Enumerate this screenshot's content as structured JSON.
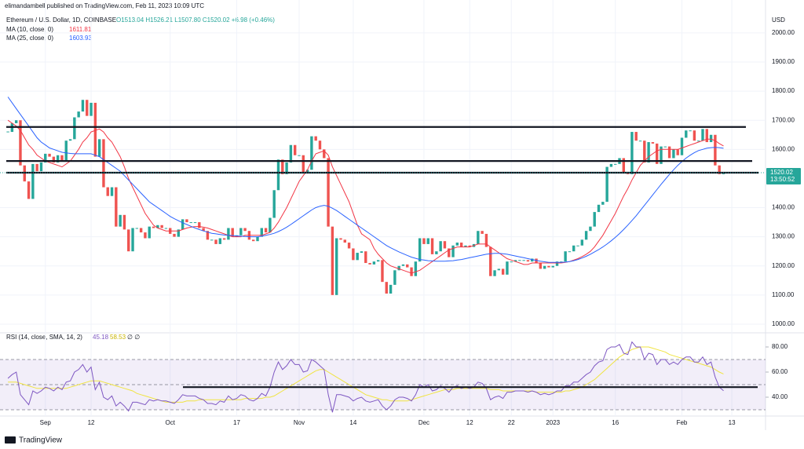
{
  "header": "elimandambell published on TradingView.com, Feb 11, 2023 10:09 UTC",
  "footer": "TradingView",
  "chart_data": {
    "type": "candlestick",
    "symbol": "Ethereum / U.S. Dollar, 1D, COINBASE",
    "ohlc_text": "O1513.04 H1526.21 L1507.80 C1520.02 +6.98 (+0.46%)",
    "currency": "USD",
    "countdown": "13:50:52",
    "up_color": "#26a69a",
    "down_color": "#ef5350",
    "close": [
      1660,
      1690,
      1700,
      1545,
      1490,
      1430,
      1550,
      1525,
      1555,
      1585,
      1575,
      1555,
      1580,
      1560,
      1630,
      1635,
      1710,
      1730,
      1770,
      1715,
      1760,
      1575,
      1635,
      1470,
      1440,
      1470,
      1335,
      1375,
      1325,
      1250,
      1330,
      1330,
      1315,
      1295,
      1335,
      1330,
      1340,
      1330,
      1330,
      1310,
      1300,
      1325,
      1360,
      1350,
      1350,
      1350,
      1330,
      1320,
      1290,
      1290,
      1275,
      1295,
      1290,
      1330,
      1300,
      1305,
      1330,
      1320,
      1290,
      1285,
      1300,
      1330,
      1315,
      1365,
      1460,
      1565,
      1515,
      1555,
      1615,
      1580,
      1580,
      1520,
      1530,
      1645,
      1630,
      1600,
      1570,
      1335,
      1100,
      1295,
      1290,
      1280,
      1260,
      1220,
      1245,
      1250,
      1210,
      1205,
      1215,
      1220,
      1145,
      1105,
      1135,
      1185,
      1200,
      1205,
      1195,
      1165,
      1215,
      1295,
      1275,
      1295,
      1240,
      1250,
      1285,
      1260,
      1230,
      1270,
      1280,
      1265,
      1270,
      1265,
      1275,
      1320,
      1310,
      1265,
      1165,
      1185,
      1190,
      1170,
      1215,
      1215,
      1220,
      1220,
      1220,
      1215,
      1225,
      1210,
      1190,
      1200,
      1195,
      1200,
      1215,
      1215,
      1250,
      1250,
      1270,
      1270,
      1290,
      1320,
      1335,
      1385,
      1410,
      1420,
      1540,
      1550,
      1550,
      1570,
      1520,
      1515,
      1660,
      1630,
      1630,
      1555,
      1625,
      1620,
      1550,
      1610,
      1610,
      1570,
      1600,
      1580,
      1640,
      1665,
      1665,
      1630,
      1630,
      1670,
      1625,
      1650,
      1545,
      1515,
      1520.02
    ],
    "series": [
      {
        "name": "MA (10, close, 0)",
        "color": "#f23645",
        "values": [
          1700,
          1690,
          1680,
          1665,
          1640,
          1615,
          1600,
          1580,
          1570,
          1560,
          1555,
          1550,
          1545,
          1540,
          1550,
          1560,
          1580,
          1600,
          1625,
          1640,
          1660,
          1665,
          1670,
          1660,
          1640,
          1625,
          1600,
          1575,
          1540,
          1500,
          1470,
          1440,
          1410,
          1380,
          1360,
          1340,
          1330,
          1325,
          1320,
          1320,
          1320,
          1320,
          1325,
          1330,
          1333,
          1335,
          1335,
          1333,
          1330,
          1325,
          1320,
          1315,
          1310,
          1305,
          1300,
          1300,
          1300,
          1305,
          1305,
          1305,
          1305,
          1305,
          1310,
          1315,
          1330,
          1350,
          1375,
          1400,
          1430,
          1460,
          1490,
          1510,
          1530,
          1560,
          1585,
          1590,
          1595,
          1580,
          1540,
          1510,
          1480,
          1450,
          1420,
          1380,
          1340,
          1310,
          1300,
          1290,
          1260,
          1240,
          1225,
          1210,
          1200,
          1195,
          1190,
          1185,
          1180,
          1175,
          1180,
          1185,
          1195,
          1205,
          1215,
          1225,
          1235,
          1245,
          1255,
          1260,
          1265,
          1265,
          1265,
          1265,
          1270,
          1275,
          1275,
          1275,
          1265,
          1255,
          1245,
          1235,
          1225,
          1220,
          1215,
          1210,
          1205,
          1205,
          1210,
          1210,
          1210,
          1210,
          1210,
          1210,
          1210,
          1210,
          1212,
          1215,
          1220,
          1225,
          1232,
          1240,
          1250,
          1265,
          1285,
          1305,
          1330,
          1355,
          1380,
          1410,
          1440,
          1465,
          1495,
          1520,
          1545,
          1560,
          1575,
          1585,
          1595,
          1600,
          1600,
          1600,
          1600,
          1600,
          1605,
          1610,
          1615,
          1620,
          1625,
          1630,
          1635,
          1635,
          1630,
          1620,
          1611.81
        ]
      },
      {
        "name": "MA (25, close, 0)",
        "color": "#2962ff",
        "values": [
          1780,
          1760,
          1740,
          1720,
          1700,
          1680,
          1660,
          1640,
          1625,
          1615,
          1605,
          1600,
          1595,
          1590,
          1588,
          1586,
          1585,
          1585,
          1585,
          1585,
          1585,
          1580,
          1575,
          1565,
          1555,
          1545,
          1535,
          1525,
          1510,
          1495,
          1480,
          1465,
          1450,
          1435,
          1420,
          1410,
          1400,
          1390,
          1380,
          1370,
          1362,
          1355,
          1348,
          1342,
          1336,
          1330,
          1325,
          1320,
          1316,
          1312,
          1310,
          1308,
          1306,
          1305,
          1304,
          1303,
          1302,
          1301,
          1300,
          1300,
          1300,
          1302,
          1305,
          1308,
          1312,
          1318,
          1325,
          1333,
          1342,
          1352,
          1362,
          1372,
          1382,
          1392,
          1400,
          1405,
          1408,
          1405,
          1398,
          1390,
          1380,
          1370,
          1360,
          1350,
          1340,
          1330,
          1320,
          1310,
          1300,
          1290,
          1280,
          1270,
          1262,
          1255,
          1248,
          1242,
          1236,
          1230,
          1226,
          1222,
          1220,
          1218,
          1217,
          1216,
          1216,
          1216,
          1217,
          1218,
          1220,
          1222,
          1225,
          1228,
          1231,
          1234,
          1237,
          1240,
          1242,
          1243,
          1243,
          1242,
          1240,
          1237,
          1234,
          1231,
          1228,
          1225,
          1222,
          1219,
          1216,
          1214,
          1212,
          1212,
          1212,
          1212,
          1213,
          1215,
          1218,
          1222,
          1227,
          1233,
          1240,
          1248,
          1256,
          1265,
          1275,
          1286,
          1298,
          1311,
          1325,
          1340,
          1356,
          1372,
          1390,
          1408,
          1426,
          1444,
          1462,
          1480,
          1497,
          1514,
          1530,
          1545,
          1558,
          1570,
          1580,
          1589,
          1596,
          1600,
          1604,
          1606,
          1607,
          1606,
          1603.93
        ]
      }
    ],
    "levels": [
      1677,
      1560,
      1520
    ],
    "level_color": "#131722",
    "xlim": [
      -1.9,
      182.1
    ],
    "xticks": [
      {
        "value": 9,
        "label": "Sep"
      },
      {
        "value": 20,
        "label": "12"
      },
      {
        "value": 39,
        "label": "Oct"
      },
      {
        "value": 55,
        "label": "17"
      },
      {
        "value": 70,
        "label": "Nov"
      },
      {
        "value": 83,
        "label": "14"
      },
      {
        "value": 100,
        "label": "Dec"
      },
      {
        "value": 111,
        "label": "12"
      },
      {
        "value": 121,
        "label": "22"
      },
      {
        "value": 131,
        "label": "2023"
      },
      {
        "value": 146,
        "label": "16"
      },
      {
        "value": 162,
        "label": "Feb"
      },
      {
        "value": 174,
        "label": "13"
      }
    ],
    "ylim": [
      981,
      2059
    ],
    "yticks": [
      {
        "value": 1000,
        "label": "1000.00"
      },
      {
        "value": 1100,
        "label": "1100.00"
      },
      {
        "value": 1200,
        "label": "1200.00"
      },
      {
        "value": 1300,
        "label": "1300.00"
      },
      {
        "value": 1400,
        "label": "1400.00"
      },
      {
        "value": 1600,
        "label": "1600.00"
      },
      {
        "value": 1700,
        "label": "1700.00"
      },
      {
        "value": 1800,
        "label": "1800.00"
      },
      {
        "value": 1900,
        "label": "1900.00"
      },
      {
        "value": 2000,
        "label": "2000.00"
      }
    ],
    "grid": true,
    "rsi": {
      "name": "RSI (14, close, SMA, 14, 2)",
      "flags": "∅ ∅",
      "color": "#7e57c2",
      "sma_color": "#f0e442",
      "band_color": "#7e57c2",
      "ylim": [
        25,
        87.5
      ],
      "yticks": [
        {
          "value": 40,
          "label": "40.00"
        },
        {
          "value": 60,
          "label": "60.00"
        },
        {
          "value": 80,
          "label": "80.00"
        }
      ],
      "band": [
        30,
        70
      ],
      "middle": 50,
      "level": 48,
      "values": [
        55,
        58,
        60,
        42,
        38,
        34,
        45,
        43,
        45,
        48,
        47,
        45,
        48,
        46,
        52,
        53,
        60,
        62,
        66,
        60,
        64,
        46,
        52,
        40,
        38,
        41,
        33,
        36,
        33,
        29,
        36,
        36,
        35,
        34,
        38,
        37,
        38,
        37,
        37,
        36,
        35,
        38,
        42,
        41,
        41,
        41,
        39,
        38,
        35,
        35,
        34,
        37,
        36,
        41,
        38,
        39,
        42,
        41,
        38,
        37,
        39,
        43,
        41,
        48,
        60,
        68,
        62,
        65,
        70,
        66,
        66,
        60,
        61,
        70,
        68,
        65,
        62,
        42,
        28,
        42,
        42,
        41,
        40,
        37,
        39,
        40,
        37,
        36,
        37,
        38,
        33,
        30,
        33,
        38,
        40,
        40,
        39,
        37,
        42,
        50,
        48,
        50,
        45,
        46,
        49,
        47,
        44,
        48,
        49,
        47,
        48,
        47,
        48,
        52,
        51,
        47,
        38,
        40,
        41,
        39,
        44,
        44,
        45,
        45,
        45,
        44,
        45,
        44,
        42,
        43,
        42,
        43,
        45,
        45,
        49,
        49,
        52,
        52,
        55,
        58,
        60,
        65,
        68,
        69,
        78,
        80,
        80,
        82,
        75,
        74,
        84,
        80,
        80,
        70,
        75,
        74,
        66,
        70,
        70,
        66,
        68,
        66,
        70,
        72,
        72,
        68,
        68,
        72,
        66,
        68,
        56,
        48,
        45.18
      ],
      "sma_values": [
        52,
        52,
        52,
        51,
        50,
        49,
        48,
        47,
        47,
        47,
        47,
        47,
        47,
        47,
        47,
        48,
        49,
        50,
        51,
        52,
        53,
        53,
        53,
        52,
        51,
        50,
        49,
        48,
        47,
        46,
        45,
        43,
        42,
        41,
        40,
        39,
        38,
        37,
        36,
        36,
        36,
        36,
        36,
        37,
        37,
        37,
        38,
        38,
        38,
        38,
        38,
        38,
        38,
        38,
        38,
        38,
        38,
        39,
        39,
        39,
        39,
        39,
        40,
        40,
        41,
        43,
        45,
        47,
        49,
        51,
        53,
        55,
        57,
        59,
        61,
        62,
        62,
        60,
        58,
        56,
        54,
        52,
        50,
        48,
        46,
        44,
        42,
        41,
        40,
        39,
        38,
        38,
        37,
        37,
        37,
        37,
        37,
        38,
        39,
        40,
        41,
        42,
        43,
        44,
        45,
        46,
        46,
        46,
        47,
        47,
        47,
        47,
        47,
        47,
        47,
        47,
        46,
        46,
        46,
        45,
        45,
        45,
        45,
        45,
        45,
        45,
        45,
        44,
        44,
        44,
        44,
        44,
        44,
        44,
        45,
        45,
        46,
        47,
        48,
        50,
        52,
        54,
        57,
        60,
        63,
        66,
        69,
        72,
        74,
        76,
        78,
        79,
        80,
        80,
        80,
        79,
        78,
        77,
        76,
        74,
        73,
        72,
        71,
        70,
        69,
        68,
        67,
        66,
        65,
        64,
        62,
        60,
        58.53
      ]
    }
  }
}
